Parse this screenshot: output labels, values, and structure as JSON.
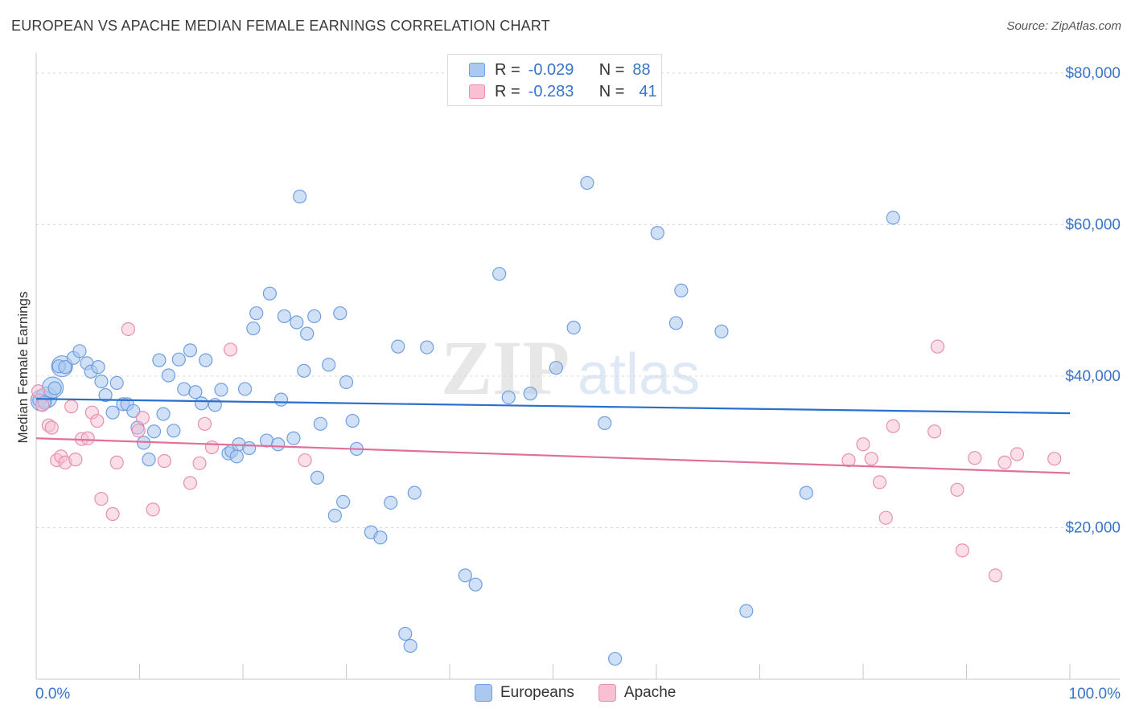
{
  "title": "EUROPEAN VS APACHE MEDIAN FEMALE EARNINGS CORRELATION CHART",
  "source": "Source: ZipAtlas.com",
  "watermark": {
    "zip": "ZIP",
    "atlas": "atlas"
  },
  "legend": {
    "europeans": {
      "r_label": "R =",
      "r_value": "-0.029",
      "n_label": "N =",
      "n_value": "88"
    },
    "apache": {
      "r_label": "R =",
      "r_value": "-0.283",
      "n_label": "N =",
      "n_value": "41"
    }
  },
  "bottom_legend": {
    "europeans": "Europeans",
    "apache": "Apache"
  },
  "colors": {
    "europeans_fill": "#aac8f0",
    "europeans_stroke": "#6f9fe0",
    "europeans_line": "#2a6fcb",
    "apache_fill": "#f8c0d2",
    "apache_stroke": "#e890ae",
    "apache_line": "#e0709a",
    "tick_label": "#3874c8",
    "grid": "#d6d6d6"
  },
  "chart_data": {
    "type": "scatter",
    "title": "EUROPEAN VS APACHE MEDIAN FEMALE EARNINGS CORRELATION CHART",
    "xlabel": "",
    "ylabel": "Median Female Earnings",
    "xlim": [
      0,
      100
    ],
    "ylim": [
      0,
      82000
    ],
    "x_tick_labels": [
      "0.0%",
      "100.0%"
    ],
    "y_ticks": [
      20000,
      40000,
      60000,
      80000
    ],
    "y_tick_labels": [
      "$20,000",
      "$40,000",
      "$60,000",
      "$80,000"
    ],
    "series": [
      {
        "name": "Europeans",
        "trend": [
          [
            0,
            37000
          ],
          [
            100,
            35100
          ]
        ],
        "points": [
          [
            0.3,
            36800
          ],
          [
            0.8,
            36500
          ],
          [
            1.8,
            38400
          ],
          [
            2.2,
            41300
          ],
          [
            2.8,
            41200
          ],
          [
            3.6,
            42400
          ],
          [
            4.2,
            43300
          ],
          [
            4.9,
            41700
          ],
          [
            5.3,
            40600
          ],
          [
            6.0,
            41200
          ],
          [
            6.3,
            39300
          ],
          [
            6.7,
            37500
          ],
          [
            7.4,
            35200
          ],
          [
            7.8,
            39100
          ],
          [
            8.4,
            36300
          ],
          [
            8.8,
            36300
          ],
          [
            9.4,
            35400
          ],
          [
            9.8,
            33200
          ],
          [
            10.4,
            31200
          ],
          [
            10.9,
            29000
          ],
          [
            11.4,
            32700
          ],
          [
            11.9,
            42100
          ],
          [
            12.3,
            35000
          ],
          [
            12.8,
            40100
          ],
          [
            13.3,
            32800
          ],
          [
            13.8,
            42200
          ],
          [
            14.3,
            38300
          ],
          [
            14.9,
            43400
          ],
          [
            15.4,
            37900
          ],
          [
            16.0,
            36400
          ],
          [
            16.4,
            42100
          ],
          [
            17.3,
            36200
          ],
          [
            17.9,
            38200
          ],
          [
            18.6,
            29800
          ],
          [
            18.9,
            30100
          ],
          [
            19.4,
            29400
          ],
          [
            19.6,
            31000
          ],
          [
            20.2,
            38300
          ],
          [
            20.6,
            30500
          ],
          [
            21.0,
            46300
          ],
          [
            21.3,
            48300
          ],
          [
            22.3,
            31500
          ],
          [
            22.6,
            50900
          ],
          [
            23.4,
            31000
          ],
          [
            23.7,
            36900
          ],
          [
            24.0,
            47900
          ],
          [
            24.9,
            31800
          ],
          [
            25.2,
            47100
          ],
          [
            25.5,
            63700
          ],
          [
            25.9,
            40700
          ],
          [
            26.2,
            45600
          ],
          [
            26.9,
            47900
          ],
          [
            27.2,
            26600
          ],
          [
            27.5,
            33700
          ],
          [
            28.3,
            41500
          ],
          [
            28.9,
            21600
          ],
          [
            29.4,
            48300
          ],
          [
            29.7,
            23400
          ],
          [
            30.0,
            39200
          ],
          [
            30.6,
            34100
          ],
          [
            31.0,
            30400
          ],
          [
            32.4,
            19400
          ],
          [
            33.3,
            18700
          ],
          [
            34.3,
            23300
          ],
          [
            35.0,
            43900
          ],
          [
            35.7,
            6000
          ],
          [
            36.2,
            4400
          ],
          [
            36.6,
            24600
          ],
          [
            37.8,
            43800
          ],
          [
            41.5,
            13700
          ],
          [
            42.5,
            12500
          ],
          [
            44.8,
            53500
          ],
          [
            45.7,
            37200
          ],
          [
            47.8,
            37700
          ],
          [
            50.3,
            41100
          ],
          [
            52.0,
            46400
          ],
          [
            53.3,
            65500
          ],
          [
            55.0,
            33800
          ],
          [
            56.0,
            2700
          ],
          [
            60.1,
            58900
          ],
          [
            61.9,
            47000
          ],
          [
            62.4,
            51300
          ],
          [
            66.3,
            45900
          ],
          [
            68.7,
            9000
          ],
          [
            74.5,
            24600
          ],
          [
            82.9,
            60900
          ]
        ],
        "large_points": [
          [
            0.5,
            36800
          ],
          [
            1.0,
            37200
          ],
          [
            1.6,
            38500
          ],
          [
            2.5,
            41300
          ]
        ]
      },
      {
        "name": "Apache",
        "trend": [
          [
            0,
            31800
          ],
          [
            100,
            27200
          ]
        ],
        "points": [
          [
            0.2,
            38000
          ],
          [
            0.6,
            36200
          ],
          [
            1.2,
            33500
          ],
          [
            1.5,
            33200
          ],
          [
            2.0,
            28900
          ],
          [
            2.4,
            29400
          ],
          [
            2.8,
            28600
          ],
          [
            3.4,
            36000
          ],
          [
            3.8,
            29000
          ],
          [
            4.4,
            31700
          ],
          [
            5.0,
            31800
          ],
          [
            5.4,
            35200
          ],
          [
            5.9,
            34100
          ],
          [
            6.3,
            23800
          ],
          [
            7.4,
            21800
          ],
          [
            7.8,
            28600
          ],
          [
            8.9,
            46200
          ],
          [
            9.9,
            32800
          ],
          [
            10.3,
            34500
          ],
          [
            11.3,
            22400
          ],
          [
            12.4,
            28800
          ],
          [
            14.9,
            25900
          ],
          [
            15.8,
            28500
          ],
          [
            16.3,
            33700
          ],
          [
            17.0,
            30600
          ],
          [
            18.8,
            43500
          ],
          [
            26.0,
            28900
          ],
          [
            78.6,
            28900
          ],
          [
            80.0,
            31000
          ],
          [
            80.8,
            29100
          ],
          [
            81.6,
            26000
          ],
          [
            82.2,
            21300
          ],
          [
            82.9,
            33400
          ],
          [
            86.9,
            32700
          ],
          [
            87.2,
            43900
          ],
          [
            89.1,
            25000
          ],
          [
            89.6,
            17000
          ],
          [
            90.8,
            29200
          ],
          [
            92.8,
            13700
          ],
          [
            93.7,
            28600
          ],
          [
            94.9,
            29700
          ],
          [
            98.5,
            29100
          ]
        ]
      }
    ]
  }
}
